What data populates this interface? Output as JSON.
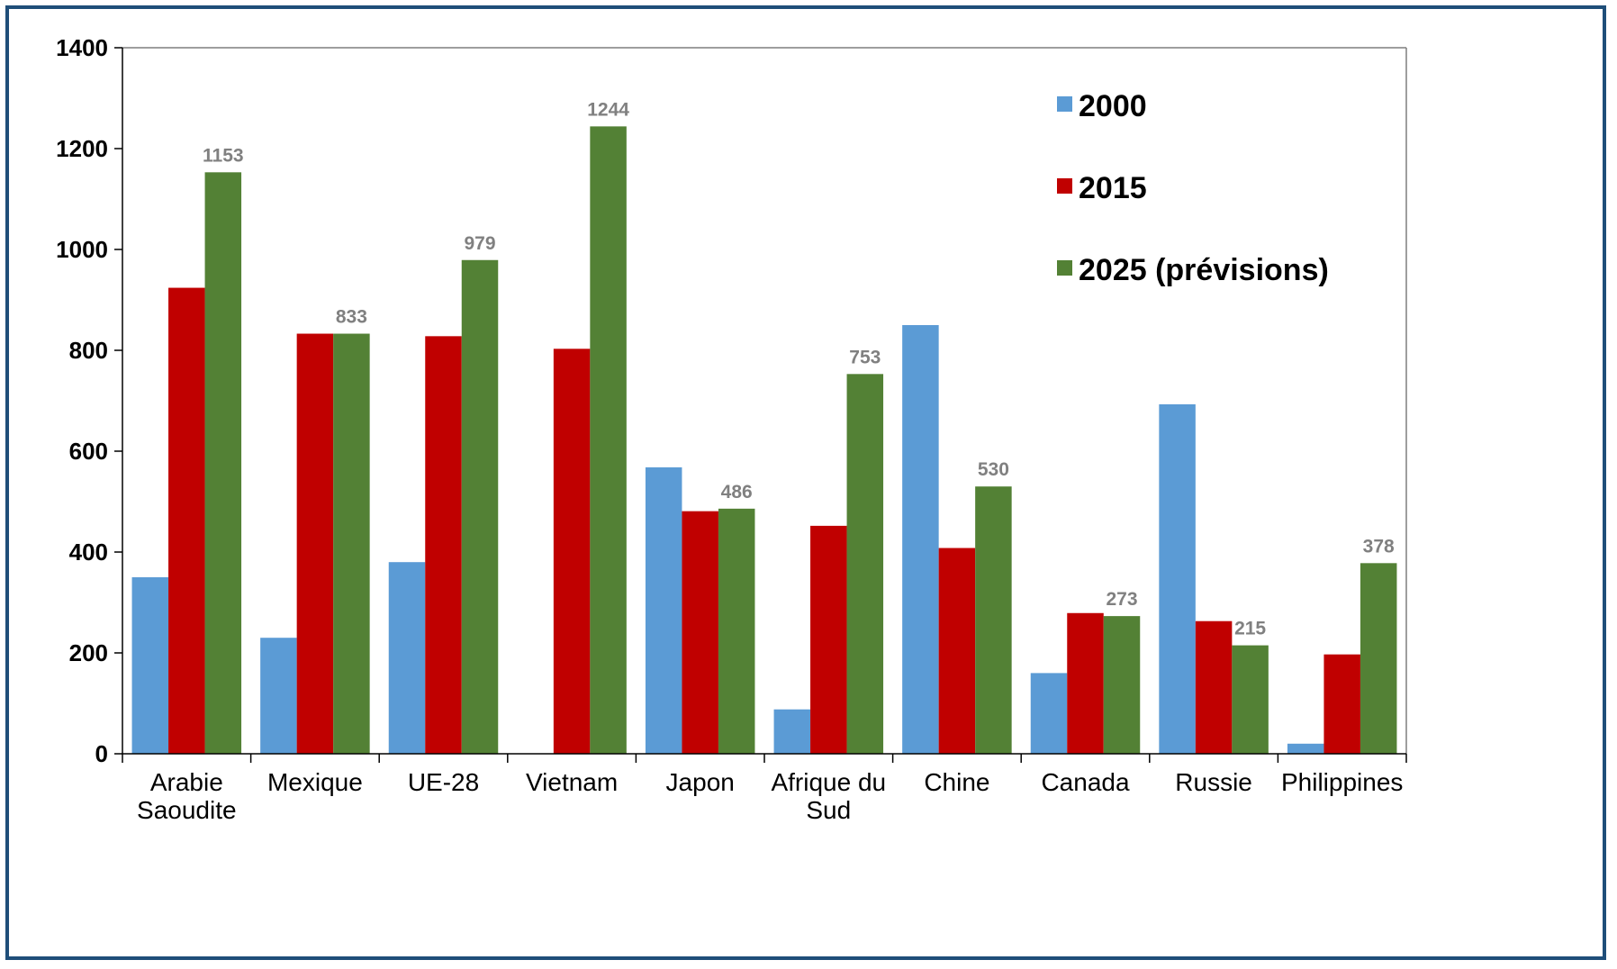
{
  "chart_data": {
    "type": "bar",
    "title": "",
    "xlabel": "",
    "ylabel": "",
    "ylim": [
      0,
      1400
    ],
    "yticks": [
      0,
      200,
      400,
      600,
      800,
      1000,
      1200,
      1400
    ],
    "grid": false,
    "legend_position": "top-right",
    "categories": [
      [
        "Arabie",
        "Saoudite"
      ],
      [
        "Mexique"
      ],
      [
        "UE-28"
      ],
      [
        "Vietnam"
      ],
      [
        "Japon"
      ],
      [
        "Afrique du",
        "Sud"
      ],
      [
        "Chine"
      ],
      [
        "Canada"
      ],
      [
        "Russie"
      ],
      [
        "Philippines"
      ]
    ],
    "series": [
      {
        "name": "2000",
        "color": "#5b9bd5",
        "values": [
          350,
          230,
          380,
          0,
          568,
          88,
          850,
          160,
          693,
          20
        ]
      },
      {
        "name": "2015",
        "color": "#c00000",
        "values": [
          924,
          833,
          828,
          803,
          481,
          452,
          408,
          279,
          263,
          197
        ]
      },
      {
        "name": "2025 (prévisions)",
        "color": "#538135",
        "values": [
          1153,
          833,
          979,
          1244,
          486,
          753,
          530,
          273,
          215,
          378
        ]
      }
    ],
    "data_labels": {
      "series": "2025 (prévisions)",
      "texts": [
        "1153",
        "833",
        "979",
        "1244",
        "486",
        "753",
        "530",
        "273",
        "215",
        "378"
      ]
    }
  }
}
